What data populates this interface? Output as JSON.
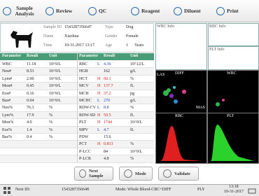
{
  "toolbar": [
    "Sample Analysis",
    "Review",
    "QC",
    "Reagent",
    "Diluent",
    "Print"
  ],
  "patient": {
    "fields": [
      {
        "label": "Sample ID",
        "value": "1543287356647"
      },
      {
        "label": "Type",
        "value": "Dog"
      },
      {
        "label": "Name",
        "value": "Xiaohua"
      },
      {
        "label": "Gender",
        "value": "Female"
      },
      {
        "label": "Time",
        "value": "10-31-2017 13:17"
      },
      {
        "label": "Age",
        "value": "1",
        "unit": "Years"
      }
    ]
  },
  "table": {
    "headers": [
      "Parameter",
      "Result",
      "Unit",
      "Parameter",
      "Result",
      "Unit"
    ],
    "left_rows": [
      {
        "parameter": "WBC",
        "result": "11.18",
        "unit": "10^9/L"
      },
      {
        "parameter": "Neu#",
        "result": "8.53",
        "unit": "10^9/L"
      },
      {
        "parameter": "Lym#",
        "result": "2.00",
        "unit": "10^9/L"
      },
      {
        "parameter": "Mon#",
        "result": "0.45",
        "unit": "10^9/L"
      },
      {
        "parameter": "Eos#",
        "result": "0.16",
        "unit": "10^9/L"
      },
      {
        "parameter": "Bas#",
        "result": "0.04",
        "unit": "10^9/L"
      },
      {
        "parameter": "Neu%",
        "result": "76.3",
        "unit": "%"
      },
      {
        "parameter": "Lym%",
        "result": "17.9",
        "unit": "%"
      },
      {
        "parameter": "Mon%",
        "result": "4.0",
        "unit": "%"
      },
      {
        "parameter": "Eos%",
        "result": "1.4",
        "unit": "%"
      },
      {
        "parameter": "Bas%",
        "result": "0.4",
        "unit": "%"
      }
    ],
    "right_rows": [
      {
        "parameter": "RBC",
        "flag": "L",
        "result": "4.36",
        "unit": "10^12/L"
      },
      {
        "parameter": "HGB",
        "result": "162",
        "unit": "g/L"
      },
      {
        "parameter": "HCT",
        "flag": "H",
        "result": "60.1",
        "unit": "%"
      },
      {
        "parameter": "MCV",
        "flag": "H",
        "result": "137.7",
        "unit": "fL"
      },
      {
        "parameter": "MCH",
        "flag": "H",
        "result": "37.2",
        "unit": "pg"
      },
      {
        "parameter": "MCHC",
        "flag": "L",
        "result": "270",
        "unit": "g/L"
      },
      {
        "parameter": "RDW-CV",
        "flag": "L",
        "result": "8.8",
        "unit": "%"
      },
      {
        "parameter": "RDW-SD",
        "flag": "H",
        "result": "50.5",
        "unit": "fL"
      },
      {
        "parameter": "PLT",
        "flag": "H",
        "result": "1744",
        "unit": "10^9/L"
      },
      {
        "parameter": "MPV",
        "flag": "L",
        "result": "4.7",
        "unit": "fL"
      },
      {
        "parameter": "PDW",
        "result": "15.6"
      },
      {
        "parameter": "PCT",
        "flag": "H",
        "result": "0.813",
        "unit": "%"
      },
      {
        "parameter": "P-LCC",
        "result": "84",
        "unit": "10^9/L"
      },
      {
        "parameter": "P-LCR",
        "result": "4.8",
        "unit": "%"
      }
    ]
  },
  "info_panels": [
    "WBC Info",
    "RBC Info",
    "PLT Info"
  ],
  "plots": [
    {
      "title": "DIFF",
      "labels": [
        "LAS",
        "MAS"
      ]
    },
    {
      "title": "WBC"
    },
    {
      "title": "RBC"
    },
    {
      "title": "PLT"
    }
  ],
  "actions": [
    "Next Sample",
    "Mode",
    "Validate"
  ],
  "status": {
    "next_id_label": "Next ID:",
    "next_id": "1543287356648",
    "mode": "Mode: Whole Blood-CBC+DIFF",
    "ply": "PLY",
    "time": "13:18",
    "date": "10-31-2017"
  }
}
